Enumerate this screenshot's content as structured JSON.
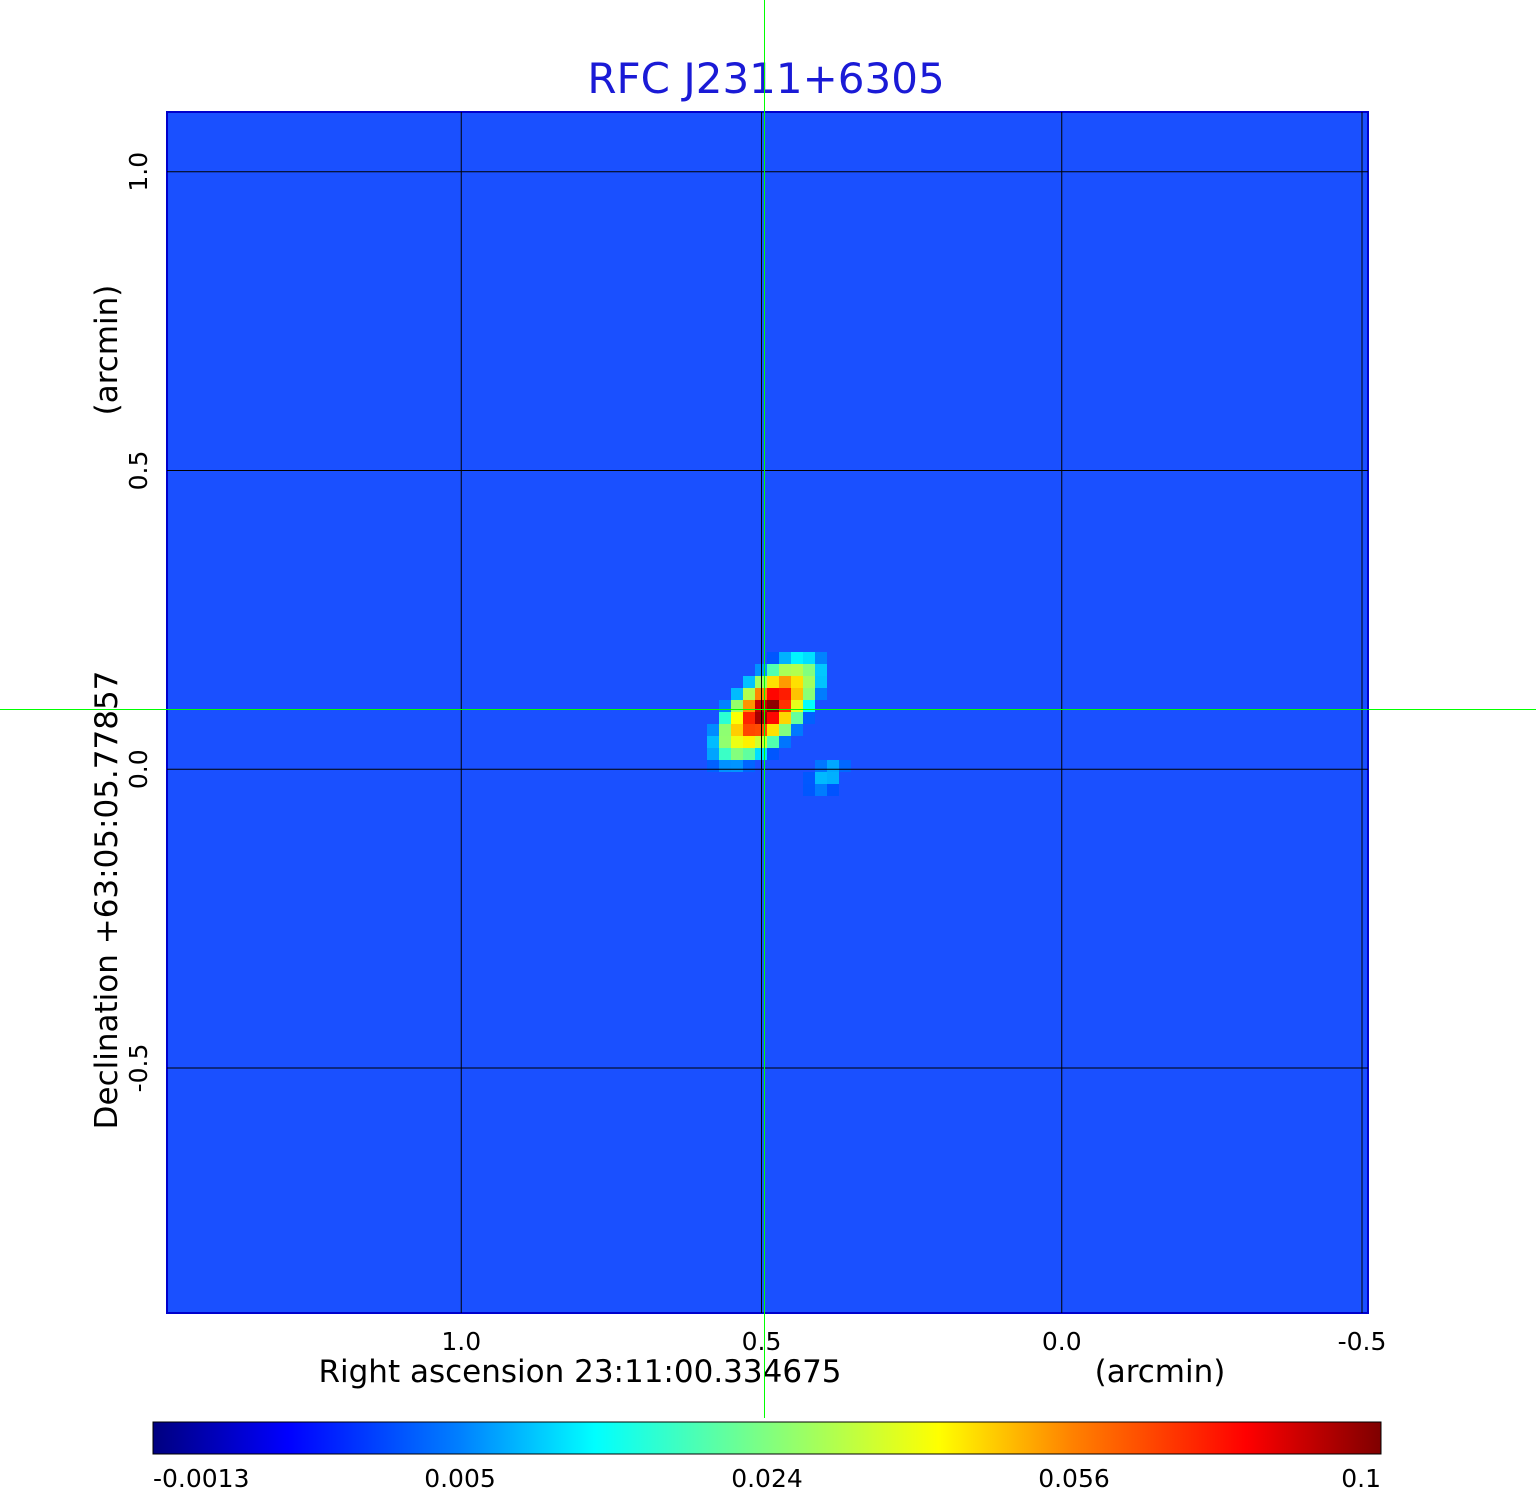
{
  "chart_data": {
    "type": "heatmap",
    "title": "RFC J2311+6305",
    "xlabel": "Right ascension  23:11:00.334675",
    "xunit": "(arcmin)",
    "ylabel": "Declination  +63:05:05.77857",
    "yunit": "(arcmin)",
    "xlim": [
      1.49,
      -0.51
    ],
    "ylim": [
      -0.91,
      1.1
    ],
    "xticks": [
      1.0,
      0.5,
      0.0,
      -0.5
    ],
    "xtick_labels": [
      "1.0",
      "0.5",
      "0.0",
      "-0.5"
    ],
    "yticks": [
      1.0,
      0.5,
      0.0,
      -0.5
    ],
    "ytick_labels": [
      "1.0",
      "0.5",
      "0.0",
      "-0.5"
    ],
    "grid": true,
    "reference_position": {
      "x": 0.495,
      "y": 0.1
    },
    "colorbar": {
      "ticks": [
        -0.0013,
        0.005,
        0.024,
        0.056,
        0.1
      ],
      "tick_labels": [
        "-0.0013",
        "0.005",
        "0.024",
        "0.056",
        "0.1"
      ],
      "placement": "bottom"
    },
    "sources": [
      {
        "x": 0.49,
        "y": 0.1,
        "peak": 0.1
      },
      {
        "x": 0.39,
        "y": -0.01,
        "peak": 0.013
      }
    ]
  },
  "colors": {
    "title": "#1a1ad6",
    "grid": "#000000",
    "crosshair": "#00ff00",
    "background_map": "#1a50ff"
  }
}
